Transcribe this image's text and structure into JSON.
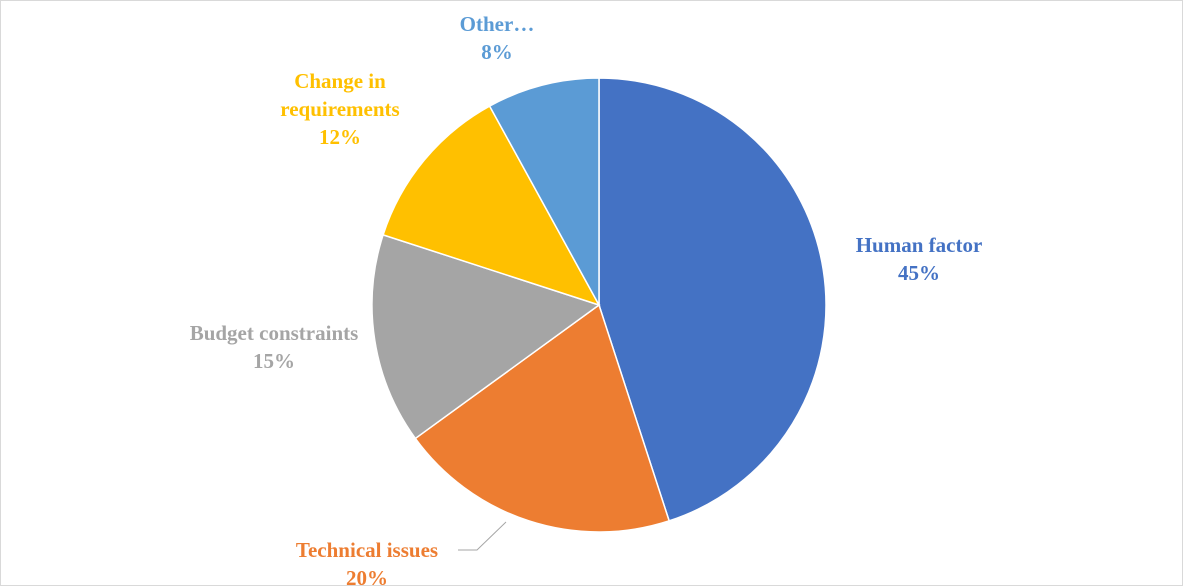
{
  "chart_data": {
    "type": "pie",
    "title": "",
    "legend": "none",
    "slices": [
      {
        "label_lines": [
          "Human factor"
        ],
        "value": 45,
        "value_label": "45%",
        "color": "#4472c4"
      },
      {
        "label_lines": [
          "Technical issues"
        ],
        "value": 20,
        "value_label": "20%",
        "color": "#ed7d31"
      },
      {
        "label_lines": [
          "Budget constraints"
        ],
        "value": 15,
        "value_label": "15%",
        "color": "#a5a5a5"
      },
      {
        "label_lines": [
          "Change in",
          "requirements"
        ],
        "value": 12,
        "value_label": "12%",
        "color": "#ffc000"
      },
      {
        "label_lines": [
          "Other…"
        ],
        "value": 8,
        "value_label": "8%",
        "color": "#5b9bd5"
      }
    ]
  }
}
